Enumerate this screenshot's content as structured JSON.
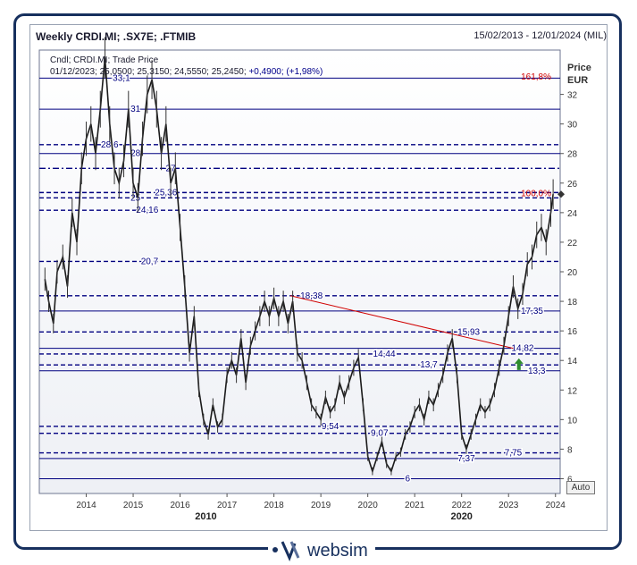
{
  "window": {
    "title": "Weekly CRDI.MI; .SX7E; .FTMIB",
    "date_range": "15/02/2013 - 12/01/2024 (MIL)",
    "price_label": "Price",
    "currency": "EUR",
    "auto_button": "Auto",
    "logo_text": "websim",
    "colors": {
      "frame": "#17305e",
      "level": "#000080",
      "fib": "#d00000",
      "trendline": "#d00000",
      "up_arrow": "#2e8b2e"
    }
  },
  "legend": {
    "series_line": "Cndl; CRDI.MI; Trade Price",
    "ohlc_date": "01/12/2023;",
    "ohlc_values": "25,0500; 25,3150; 24,5550; 25,2450;",
    "change": "+0,4900; (+1,98%)"
  },
  "chart_data": {
    "type": "line",
    "title": "Weekly CRDI.MI; .SX7E; .FTMIB",
    "ylabel": "Price EUR",
    "ylim": [
      5,
      35
    ],
    "xlim": [
      2013.0,
      2024.1
    ],
    "y_ticks": [
      6,
      8,
      10,
      12,
      14,
      16,
      18,
      20,
      22,
      24,
      26,
      28,
      30,
      32
    ],
    "x_ticks": [
      "2014",
      "2015",
      "2016",
      "2017",
      "2018",
      "2019",
      "2020",
      "2021",
      "2022",
      "2023",
      "2024"
    ],
    "x_tick_values": [
      2014,
      2015,
      2016,
      2017,
      2018,
      2019,
      2020,
      2021,
      2022,
      2023,
      2024
    ],
    "x_decades": [
      {
        "label": "2010",
        "x": 2016.55
      },
      {
        "label": "2020",
        "x": 2022.0
      }
    ],
    "series": [
      {
        "values": [
          [
            2013.12,
            19.5
          ],
          [
            2013.2,
            18
          ],
          [
            2013.3,
            16.5
          ],
          [
            2013.38,
            20
          ],
          [
            2013.5,
            21
          ],
          [
            2013.6,
            19
          ],
          [
            2013.7,
            24
          ],
          [
            2013.8,
            22
          ],
          [
            2013.9,
            27
          ],
          [
            2014.0,
            29
          ],
          [
            2014.1,
            30
          ],
          [
            2014.2,
            28
          ],
          [
            2014.3,
            31
          ],
          [
            2014.4,
            34.5
          ],
          [
            2014.5,
            30
          ],
          [
            2014.6,
            27
          ],
          [
            2014.7,
            26
          ],
          [
            2014.8,
            27.5
          ],
          [
            2014.9,
            31
          ],
          [
            2015.0,
            26
          ],
          [
            2015.1,
            25
          ],
          [
            2015.2,
            29
          ],
          [
            2015.3,
            32
          ],
          [
            2015.4,
            33
          ],
          [
            2015.5,
            31
          ],
          [
            2015.6,
            28
          ],
          [
            2015.7,
            30
          ],
          [
            2015.8,
            26
          ],
          [
            2015.9,
            27
          ],
          [
            2016.0,
            23
          ],
          [
            2016.1,
            19
          ],
          [
            2016.2,
            14.5
          ],
          [
            2016.3,
            17
          ],
          [
            2016.4,
            12
          ],
          [
            2016.5,
            10
          ],
          [
            2016.6,
            9
          ],
          [
            2016.7,
            11
          ],
          [
            2016.8,
            9.5
          ],
          [
            2016.9,
            10
          ],
          [
            2017.0,
            13
          ],
          [
            2017.1,
            14
          ],
          [
            2017.2,
            13
          ],
          [
            2017.3,
            15.5
          ],
          [
            2017.4,
            12.5
          ],
          [
            2017.5,
            15
          ],
          [
            2017.6,
            16
          ],
          [
            2017.7,
            17
          ],
          [
            2017.8,
            18
          ],
          [
            2017.9,
            17
          ],
          [
            2018.0,
            18.2
          ],
          [
            2018.1,
            17
          ],
          [
            2018.2,
            18
          ],
          [
            2018.3,
            16.5
          ],
          [
            2018.4,
            18
          ],
          [
            2018.5,
            14.5
          ],
          [
            2018.6,
            14
          ],
          [
            2018.7,
            12.5
          ],
          [
            2018.8,
            11
          ],
          [
            2018.9,
            10.5
          ],
          [
            2019.0,
            10
          ],
          [
            2019.1,
            11.5
          ],
          [
            2019.2,
            10.5
          ],
          [
            2019.3,
            11
          ],
          [
            2019.4,
            12.5
          ],
          [
            2019.5,
            11.5
          ],
          [
            2019.6,
            12.5
          ],
          [
            2019.7,
            13.5
          ],
          [
            2019.8,
            14.2
          ],
          [
            2019.9,
            11
          ],
          [
            2020.0,
            7.5
          ],
          [
            2020.1,
            6.5
          ],
          [
            2020.2,
            7.5
          ],
          [
            2020.3,
            8.5
          ],
          [
            2020.4,
            7
          ],
          [
            2020.5,
            6.5
          ],
          [
            2020.6,
            7.5
          ],
          [
            2020.7,
            7.8
          ],
          [
            2020.8,
            9
          ],
          [
            2020.9,
            9.5
          ],
          [
            2021.0,
            10.5
          ],
          [
            2021.1,
            11
          ],
          [
            2021.2,
            10
          ],
          [
            2021.3,
            11.5
          ],
          [
            2021.4,
            11
          ],
          [
            2021.5,
            12
          ],
          [
            2021.6,
            13
          ],
          [
            2021.7,
            14.5
          ],
          [
            2021.8,
            15.5
          ],
          [
            2021.9,
            13
          ],
          [
            2022.0,
            9
          ],
          [
            2022.1,
            8
          ],
          [
            2022.2,
            9
          ],
          [
            2022.3,
            10
          ],
          [
            2022.4,
            11
          ],
          [
            2022.5,
            10.5
          ],
          [
            2022.6,
            11
          ],
          [
            2022.7,
            12
          ],
          [
            2022.8,
            13.5
          ],
          [
            2022.9,
            15
          ],
          [
            2023.0,
            17
          ],
          [
            2023.1,
            19
          ],
          [
            2023.2,
            17.5
          ],
          [
            2023.3,
            18.5
          ],
          [
            2023.4,
            20.5
          ],
          [
            2023.5,
            21
          ],
          [
            2023.6,
            22.5
          ],
          [
            2023.7,
            23
          ],
          [
            2023.8,
            22
          ],
          [
            2023.9,
            24
          ],
          [
            2023.95,
            25.25
          ]
        ]
      }
    ],
    "levels": [
      {
        "label": "33,1",
        "y": 33.1,
        "style": "solid",
        "lx": 2014.75
      },
      {
        "label": "31",
        "y": 31,
        "style": "solid",
        "lx": 2015.05
      },
      {
        "label": "28,6",
        "y": 28.6,
        "style": "dashed",
        "lx": 2014.5
      },
      {
        "label": "28",
        "y": 28,
        "style": "solid",
        "lx": 2015.05
      },
      {
        "label": "27",
        "y": 27,
        "style": "dashdot",
        "lx": 2015.8
      },
      {
        "label": "25,36",
        "y": 25.36,
        "style": "dashed",
        "lx": 2015.7
      },
      {
        "label": "25",
        "y": 25,
        "style": "dashed",
        "lx": 2015.05
      },
      {
        "label": "24,16",
        "y": 24.16,
        "style": "dashed",
        "lx": 2015.3
      },
      {
        "label": "20,7",
        "y": 20.7,
        "style": "dashed",
        "lx": 2015.35
      },
      {
        "label": "18,38",
        "y": 18.38,
        "style": "dashed",
        "lx": 2018.8
      },
      {
        "label": "17,35",
        "y": 17.35,
        "style": "solid",
        "lx": 2023.5
      },
      {
        "label": "15,93",
        "y": 15.93,
        "style": "dashed",
        "lx": 2022.15
      },
      {
        "label": "14,82",
        "y": 14.82,
        "style": "solid",
        "lx": 2023.3
      },
      {
        "label": "14,44",
        "y": 14.44,
        "style": "dashed",
        "lx": 2020.35
      },
      {
        "label": "13,7",
        "y": 13.7,
        "style": "dashed",
        "lx": 2021.3
      },
      {
        "label": "13,3",
        "y": 13.3,
        "style": "solid",
        "lx": 2023.6
      },
      {
        "label": "9,54",
        "y": 9.54,
        "style": "dashed",
        "lx": 2019.2
      },
      {
        "label": "9,07",
        "y": 9.07,
        "style": "dashed",
        "lx": 2020.25
      },
      {
        "label": "7,75",
        "y": 7.75,
        "style": "dashed",
        "lx": 2023.1
      },
      {
        "label": "7,37",
        "y": 7.37,
        "style": "solid",
        "lx": 2022.1
      },
      {
        "label": "6",
        "y": 6,
        "style": "solid",
        "lx": 2020.85
      }
    ],
    "fib_labels": [
      {
        "label": "161,8%",
        "y": 33.0
      },
      {
        "label": "100,0%",
        "y": 25.1
      }
    ],
    "trendline": {
      "x1": 2018.35,
      "y1": 18.38,
      "x2": 2023.1,
      "y2": 14.82
    },
    "last_price": 25.25
  }
}
